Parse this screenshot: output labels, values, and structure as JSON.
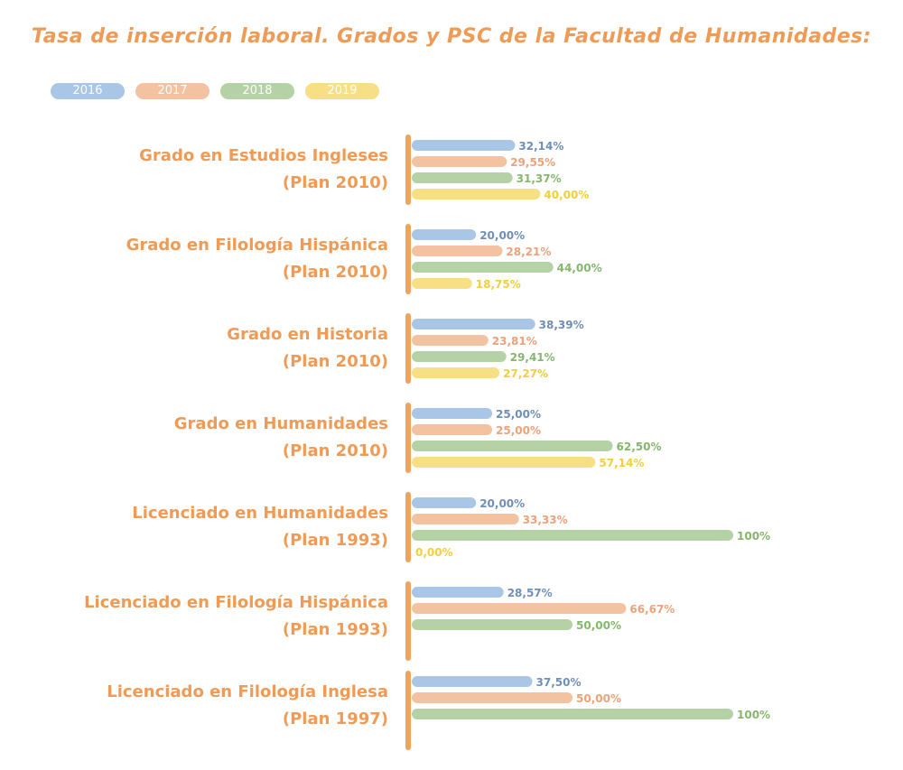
{
  "chart_data": {
    "type": "bar",
    "orientation": "horizontal",
    "title": "Tasa de inserción laboral. Grados y PSC de la Facultad de Humanidades:",
    "xlim": [
      0,
      100
    ],
    "grid": false,
    "legend_position": "top-left",
    "label_color": "#ef9b55",
    "axis_color": "#f0a35a",
    "series": [
      {
        "name": "2016",
        "color": "#a9c6e6",
        "label_color": "#6f8fb8",
        "values": [
          32.14,
          20.0,
          38.39,
          25.0,
          20.0,
          28.57,
          37.5
        ],
        "labels": [
          "32,14%",
          "20,00%",
          "38,39%",
          "25,00%",
          "20,00%",
          "28,57%",
          "37,50%"
        ]
      },
      {
        "name": "2017",
        "color": "#f3c2a0",
        "label_color": "#eda27a",
        "values": [
          29.55,
          28.21,
          23.81,
          25.0,
          33.33,
          66.67,
          50.0
        ],
        "labels": [
          "29,55%",
          "28,21%",
          "23,81%",
          "25,00%",
          "33,33%",
          "66,67%",
          "50,00%"
        ]
      },
      {
        "name": "2018",
        "color": "#b4d2a6",
        "label_color": "#84b86c",
        "values": [
          31.37,
          44.0,
          29.41,
          62.5,
          100,
          50.0,
          100
        ],
        "labels": [
          "31,37%",
          "44,00%",
          "29,41%",
          "62,50%",
          "100%",
          "50,00%",
          "100%"
        ]
      },
      {
        "name": "2019",
        "color": "#f7df85",
        "label_color": "#f2cf3c",
        "values": [
          40.0,
          18.75,
          27.27,
          57.14,
          0.0,
          null,
          null
        ],
        "labels": [
          "40,00%",
          "18,75%",
          "27,27%",
          "57,14%",
          "0,00%",
          null,
          null
        ]
      }
    ],
    "categories": [
      {
        "line1": "Grado en Estudios Ingleses",
        "line2": "(Plan 2010)"
      },
      {
        "line1": "Grado en Filología Hispánica",
        "line2": "(Plan 2010)"
      },
      {
        "line1": "Grado en Historia",
        "line2": "(Plan 2010)"
      },
      {
        "line1": "Grado en Humanidades",
        "line2": "(Plan 2010)"
      },
      {
        "line1": "Licenciado en Humanidades",
        "line2": "(Plan 1993)"
      },
      {
        "line1": "Licenciado en Filología Hispánica",
        "line2": "(Plan 1993)"
      },
      {
        "line1": "Licenciado en Filología Inglesa",
        "line2": "(Plan 1997)"
      }
    ]
  }
}
